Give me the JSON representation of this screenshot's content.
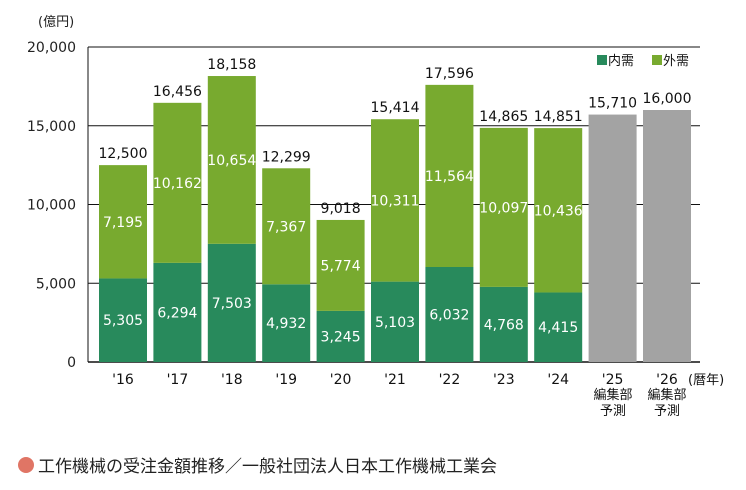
{
  "chart_data": {
    "type": "bar",
    "stacked": true,
    "unit_label": "(億円)",
    "x_unit_label": "(暦年)",
    "categories": [
      "'16",
      "'17",
      "'18",
      "'19",
      "'20",
      "'21",
      "'22",
      "'23",
      "'24",
      "'25",
      "'26"
    ],
    "category_notes": [
      "",
      "",
      "",
      "",
      "",
      "",
      "",
      "",
      "",
      "編集部予測",
      "編集部予測"
    ],
    "series": [
      {
        "name": "内需",
        "color": "#288a5c",
        "values": [
          5305,
          6294,
          7503,
          4932,
          3245,
          5103,
          6032,
          4768,
          4415,
          null,
          null
        ]
      },
      {
        "name": "外需",
        "color": "#78aa2f",
        "values": [
          7195,
          10162,
          10654,
          7367,
          5774,
          10311,
          11564,
          10097,
          10436,
          null,
          null
        ]
      },
      {
        "name": "予測",
        "color": "#a3a3a3",
        "values": [
          null,
          null,
          null,
          null,
          null,
          null,
          null,
          null,
          null,
          15710,
          16000
        ]
      }
    ],
    "totals": [
      12500,
      16456,
      18158,
      12299,
      9018,
      15414,
      17596,
      14865,
      14851,
      15710,
      16000
    ],
    "ylim": [
      0,
      20000
    ],
    "yticks": [
      0,
      5000,
      10000,
      15000,
      20000
    ],
    "legend": [
      "内需",
      "外需"
    ],
    "legend_position": "top-right",
    "grid": true
  },
  "caption": "工作機械の受注金額推移／一般社団法人日本工作機械工業会",
  "caption_color": "#e07565"
}
